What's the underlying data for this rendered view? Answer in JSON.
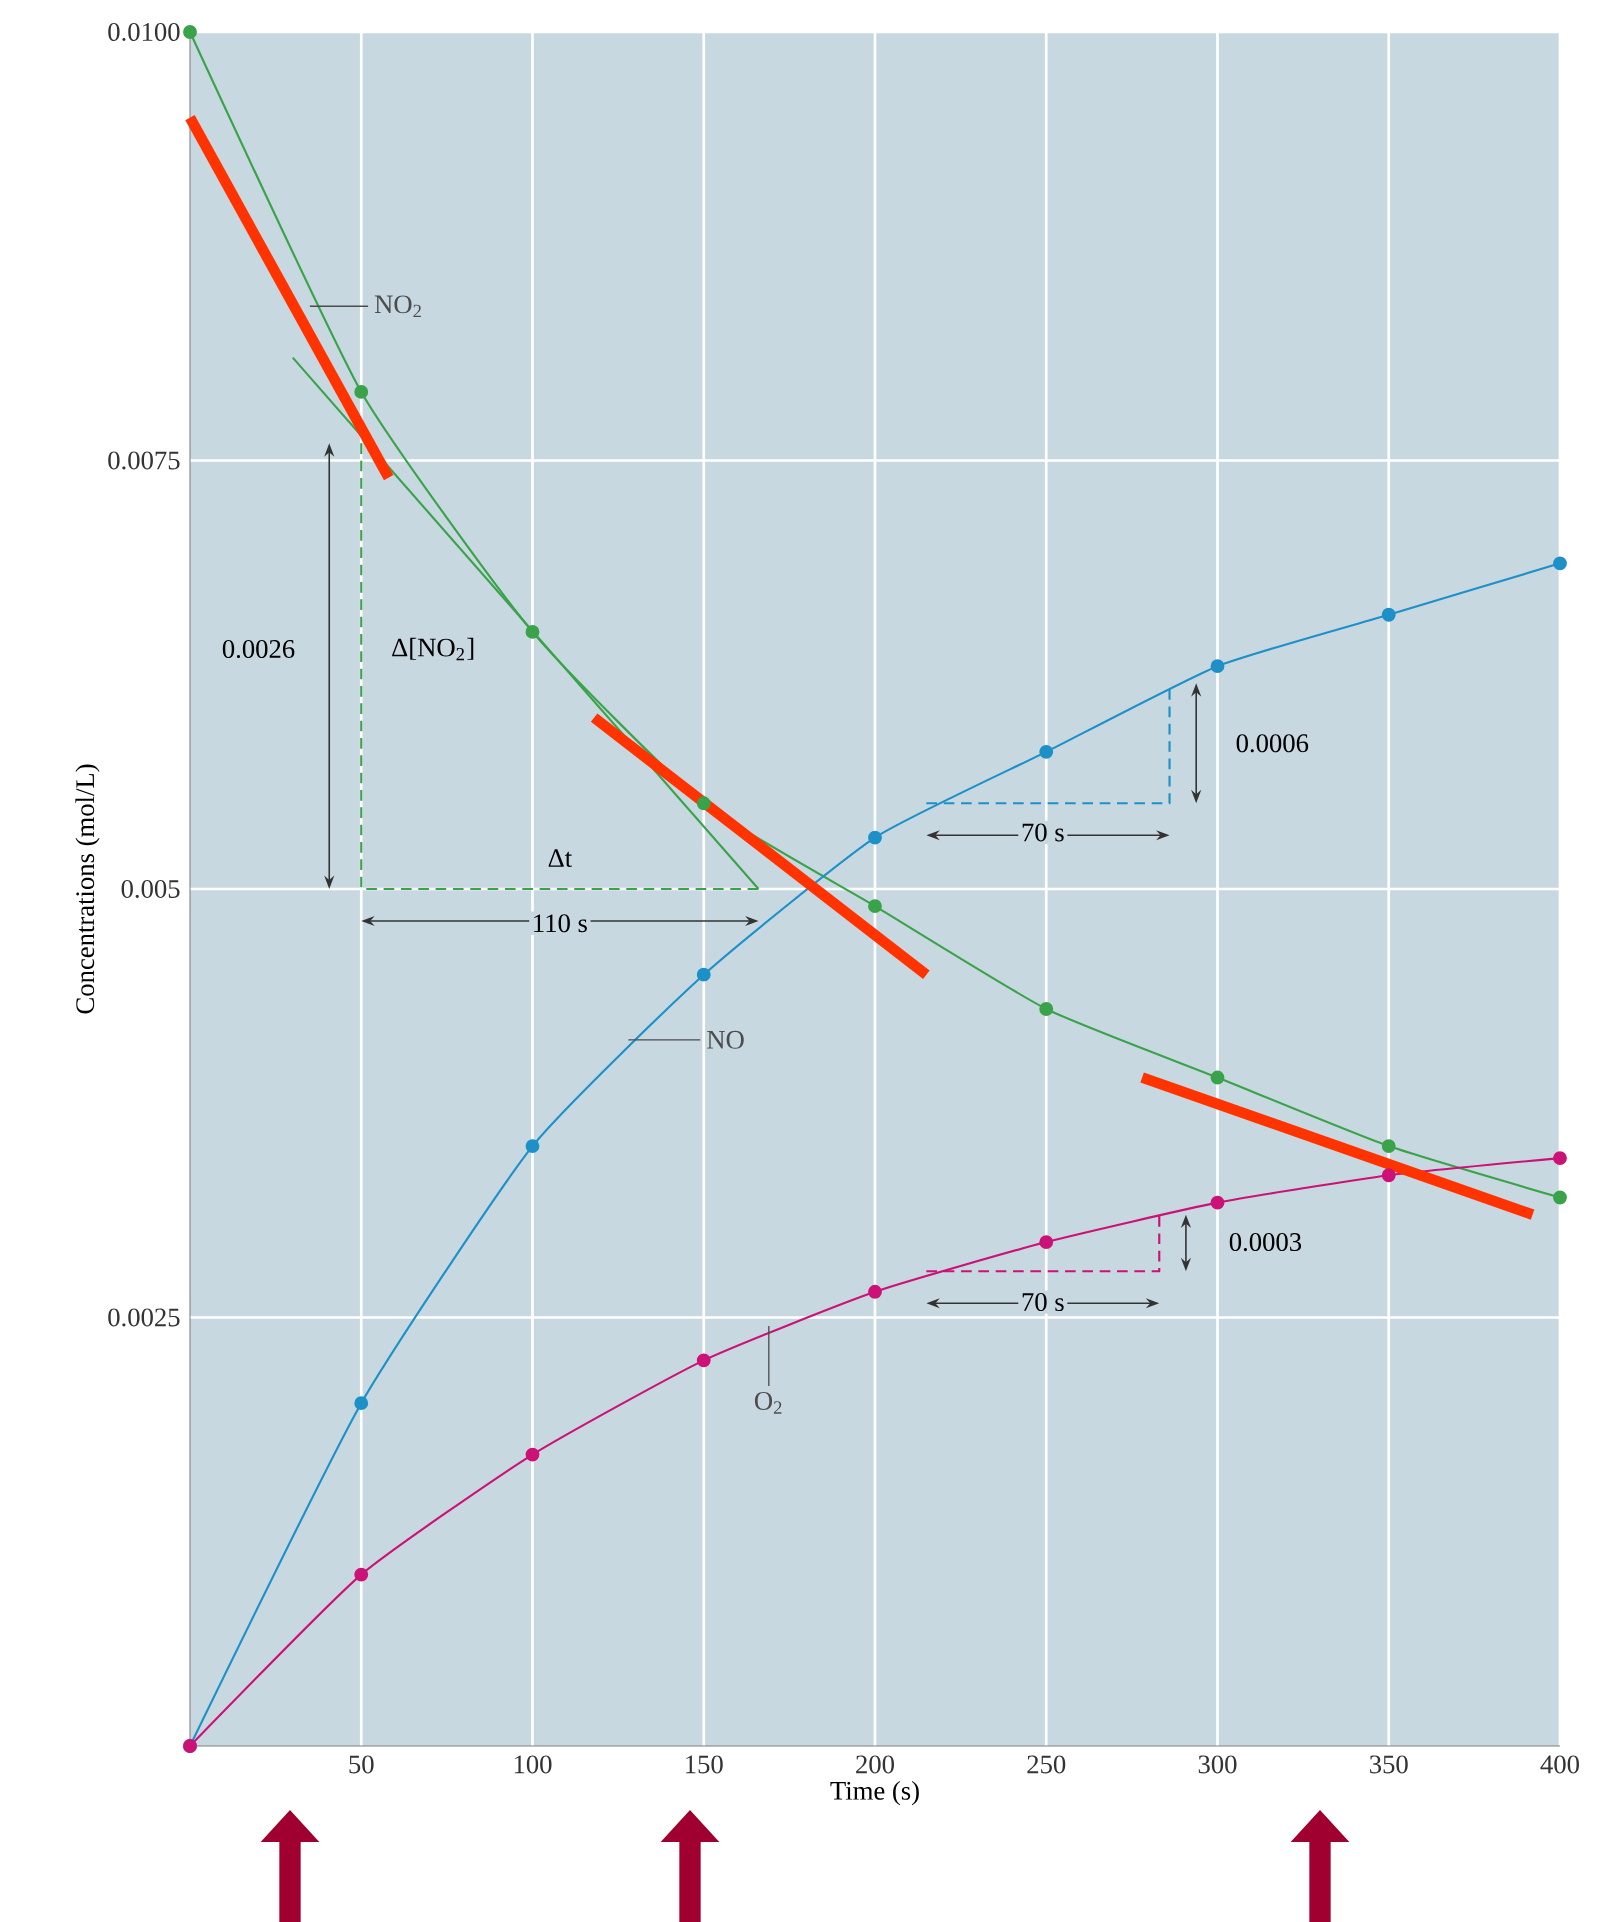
{
  "chart_data": {
    "type": "line",
    "xlabel": "Time (s)",
    "ylabel": "Concentrations (mol/L)",
    "x": [
      0,
      50,
      100,
      150,
      200,
      250,
      300,
      350,
      400
    ],
    "xlim": [
      0,
      400
    ],
    "ylim": [
      0,
      0.01
    ],
    "xticks": [
      50,
      100,
      150,
      200,
      250,
      300,
      350,
      400
    ],
    "yticks": [
      0.0025,
      0.005,
      0.0075,
      {
        "value": 0.01,
        "label": "0.0100"
      }
    ],
    "grid": true,
    "legend": false,
    "marker": "circle",
    "line_style": "solid",
    "series": [
      {
        "name": "NO$_{2}$",
        "color": "#3aa34a",
        "values": [
          0.01,
          0.0079,
          0.0065,
          0.0055,
          0.0049,
          0.0043,
          0.0039,
          0.0035,
          0.0032
        ]
      },
      {
        "name": "NO",
        "color": "#1e90c8",
        "values": [
          0,
          0.002,
          0.0035,
          0.0045,
          0.0053,
          0.0058,
          0.0063,
          0.0066,
          0.0069
        ]
      },
      {
        "name": "O$_{2}$",
        "color": "#cc1177",
        "values": [
          0,
          0.001,
          0.0017,
          0.00225,
          0.00265,
          0.00294,
          0.00317,
          0.00333,
          0.00343
        ]
      },
      {
        "type": "line",
        "marker": "none",
        "color": "#3aa34a",
        "x": [
          30,
          166
        ],
        "values": [
          0.0081,
          0.005
        ]
      },
      {
        "type": "line",
        "marker": "none",
        "line_style": "dashed",
        "color": "#3aa34a",
        "x": [
          50,
          50,
          166
        ],
        "values": [
          0.0076,
          0.005,
          0.005
        ]
      },
      {
        "type": "line",
        "marker": "none",
        "line_style": "dashed",
        "color": "#1e90c8",
        "x": [
          215,
          286,
          286
        ],
        "values": [
          0.0055,
          0.0055,
          0.0062
        ]
      },
      {
        "type": "line",
        "marker": "none",
        "line_style": "dashed",
        "color": "#cc1177",
        "x": [
          215,
          283,
          283
        ],
        "values": [
          0.00277,
          0.00277,
          0.0031
        ]
      },
      {
        "type": "line",
        "marker": "none",
        "color": "#ff3300",
        "x": [
          0,
          58
        ],
        "values": [
          0.0095,
          0.0074
        ]
      },
      {
        "type": "line",
        "marker": "none",
        "color": "#ff3300",
        "x": [
          118,
          215
        ],
        "values": [
          0.006,
          0.0045
        ]
      },
      {
        "type": "line",
        "marker": "none",
        "color": "#ff3300",
        "x": [
          278,
          392
        ],
        "values": [
          0.0039,
          0.0031
        ]
      }
    ],
    "annotations": [
      "0.0026",
      "Δ[NO$_{2}$]",
      "Δt",
      "110 s",
      "70 s",
      "0.0006",
      "0.0003",
      "70 s"
    ]
  }
}
